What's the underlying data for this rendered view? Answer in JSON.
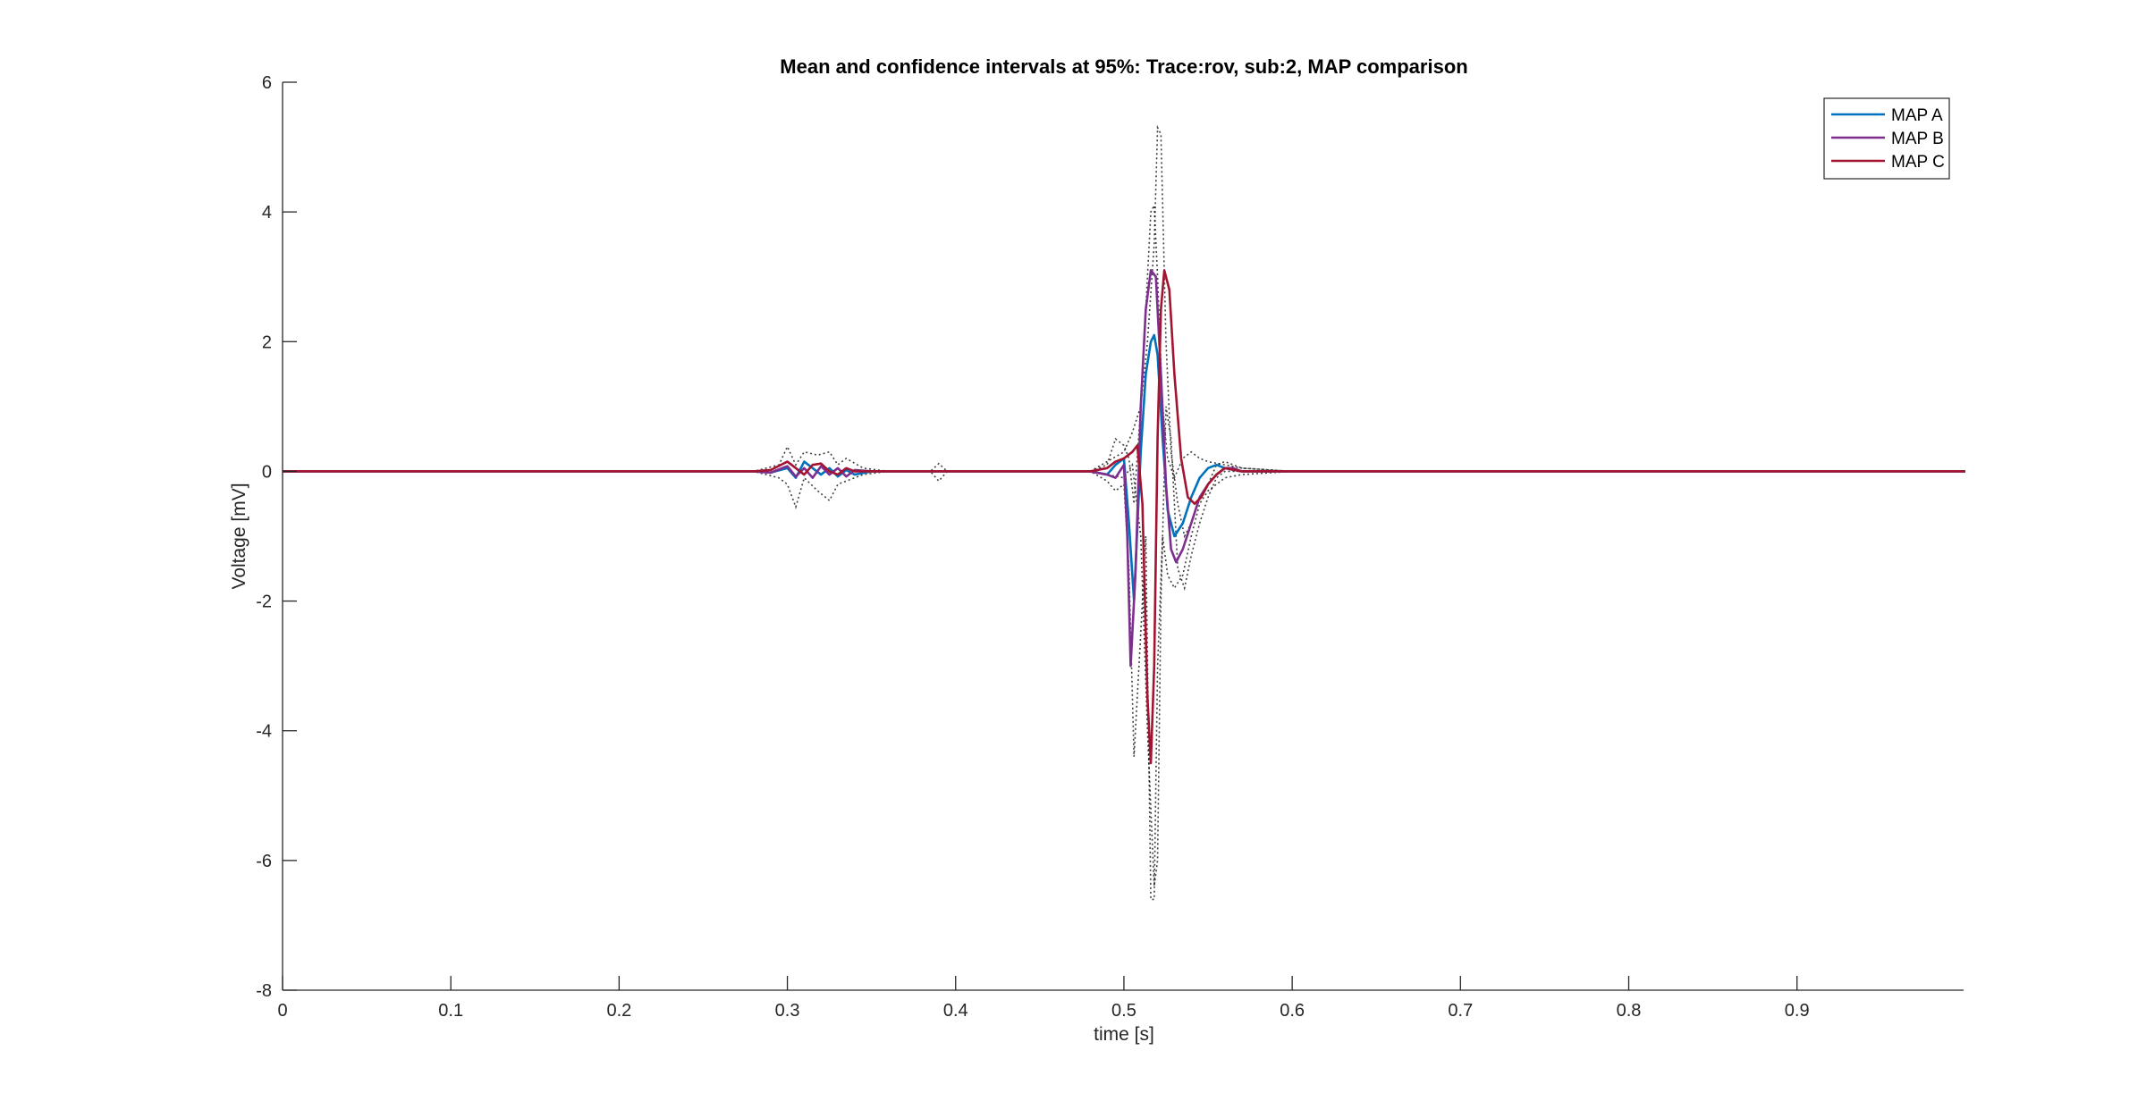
{
  "chart_data": {
    "type": "line",
    "title": "Mean and confidence intervals at 95%: Trace:rov, sub:2, MAP comparison",
    "xlabel": "time [s]",
    "ylabel": "Voltage [mV]",
    "xlim": [
      0,
      0.999
    ],
    "ylim": [
      -8,
      6
    ],
    "xticks": [
      0,
      0.1,
      0.2,
      0.3,
      0.4,
      0.5,
      0.6,
      0.7,
      0.8,
      0.9
    ],
    "xtick_labels": [
      "0",
      "0.1",
      "0.2",
      "0.3",
      "0.4",
      "0.5",
      "0.6",
      "0.7",
      "0.8",
      "0.9"
    ],
    "yticks": [
      -8,
      -6,
      -4,
      -2,
      0,
      2,
      4,
      6
    ],
    "ytick_labels": [
      "-8",
      "-6",
      "-4",
      "-2",
      "0",
      "2",
      "4",
      "6"
    ],
    "grid": false,
    "legend_position": "top-right",
    "series": [
      {
        "name": "MAP A",
        "color": "#0072BD",
        "style": "solid",
        "x": [
          0,
          0.28,
          0.29,
          0.3,
          0.305,
          0.31,
          0.315,
          0.32,
          0.325,
          0.33,
          0.335,
          0.34,
          0.35,
          0.36,
          0.4,
          0.48,
          0.49,
          0.495,
          0.5,
          0.503,
          0.506,
          0.51,
          0.513,
          0.516,
          0.518,
          0.52,
          0.523,
          0.526,
          0.53,
          0.535,
          0.54,
          0.545,
          0.55,
          0.555,
          0.56,
          0.57,
          0.6,
          1.0
        ],
        "y": [
          0,
          0,
          -0.02,
          0.05,
          -0.1,
          0.15,
          0.05,
          -0.05,
          0.05,
          -0.08,
          0.02,
          -0.05,
          0,
          0,
          0,
          0,
          -0.05,
          0.1,
          0.2,
          -0.8,
          -2.0,
          0.3,
          1.5,
          2.0,
          2.1,
          1.8,
          0.5,
          -0.6,
          -1.0,
          -0.8,
          -0.4,
          -0.1,
          0.05,
          0.1,
          0.05,
          0,
          0,
          0
        ]
      },
      {
        "name": "MAP B",
        "color": "#7E2F8E",
        "style": "solid",
        "x": [
          0,
          0.28,
          0.29,
          0.3,
          0.305,
          0.31,
          0.315,
          0.32,
          0.325,
          0.33,
          0.335,
          0.34,
          0.35,
          0.36,
          0.4,
          0.48,
          0.49,
          0.495,
          0.5,
          0.502,
          0.504,
          0.507,
          0.51,
          0.513,
          0.516,
          0.519,
          0.522,
          0.525,
          0.528,
          0.531,
          0.535,
          0.54,
          0.545,
          0.55,
          0.555,
          0.56,
          0.565,
          0.57,
          0.6,
          1.0
        ],
        "y": [
          0,
          0,
          -0.02,
          0.08,
          -0.08,
          0.05,
          -0.1,
          0.08,
          -0.05,
          0.05,
          -0.08,
          0.02,
          0,
          0,
          0,
          0,
          -0.05,
          -0.1,
          0.1,
          -1.0,
          -3.0,
          -1.5,
          1.0,
          2.5,
          3.1,
          3.0,
          1.5,
          -0.2,
          -1.2,
          -1.4,
          -1.2,
          -0.8,
          -0.4,
          -0.2,
          -0.05,
          0.05,
          0.05,
          0,
          0,
          0
        ]
      },
      {
        "name": "MAP C",
        "color": "#A2142F",
        "style": "solid",
        "x": [
          0,
          0.28,
          0.29,
          0.3,
          0.305,
          0.31,
          0.315,
          0.32,
          0.325,
          0.33,
          0.335,
          0.34,
          0.35,
          0.36,
          0.4,
          0.48,
          0.49,
          0.495,
          0.5,
          0.505,
          0.508,
          0.511,
          0.514,
          0.516,
          0.518,
          0.52,
          0.522,
          0.524,
          0.527,
          0.53,
          0.534,
          0.538,
          0.542,
          0.546,
          0.55,
          0.555,
          0.56,
          0.57,
          0.6,
          1.0
        ],
        "y": [
          0,
          0,
          0.02,
          0.15,
          0.05,
          -0.05,
          0.1,
          0.12,
          0.0,
          -0.05,
          0.05,
          0.0,
          0,
          0,
          0,
          0,
          0.05,
          0.15,
          0.2,
          0.3,
          0.4,
          -0.5,
          -3.5,
          -4.5,
          -3.0,
          0.5,
          2.5,
          3.1,
          2.8,
          1.5,
          0.2,
          -0.4,
          -0.5,
          -0.4,
          -0.2,
          -0.05,
          0.05,
          0,
          0,
          0
        ]
      }
    ],
    "confidence_intervals": [
      {
        "color": "#000000",
        "style": "dotted",
        "x": [
          0,
          0.28,
          0.295,
          0.3,
          0.305,
          0.31,
          0.318,
          0.325,
          0.33,
          0.335,
          0.345,
          0.36,
          0.385,
          0.39,
          0.395,
          0.48,
          0.49,
          0.495,
          0.5,
          0.503,
          0.506,
          0.51,
          0.513,
          0.516,
          0.518,
          0.52,
          0.523,
          0.526,
          0.53,
          0.535,
          0.54,
          0.545,
          0.55,
          0.56,
          0.57,
          0.6,
          1.0
        ],
        "y": [
          0,
          0,
          0.1,
          0.38,
          0.1,
          0.3,
          0.25,
          0.3,
          0.1,
          0.2,
          0.05,
          0,
          0,
          0.12,
          0,
          0,
          0.1,
          0.5,
          0.4,
          0.2,
          -0.5,
          1.0,
          2.5,
          4.0,
          4.1,
          3.0,
          1.0,
          0.2,
          -0.1,
          0.2,
          0.3,
          0.2,
          0.15,
          0.1,
          0.05,
          0,
          0
        ]
      },
      {
        "color": "#000000",
        "style": "dotted",
        "x": [
          0,
          0.28,
          0.295,
          0.3,
          0.305,
          0.31,
          0.318,
          0.325,
          0.33,
          0.335,
          0.345,
          0.36,
          0.385,
          0.39,
          0.395,
          0.48,
          0.49,
          0.495,
          0.5,
          0.503,
          0.506,
          0.51,
          0.513,
          0.516,
          0.518,
          0.52,
          0.523,
          0.526,
          0.53,
          0.535,
          0.54,
          0.545,
          0.55,
          0.56,
          0.57,
          0.6,
          1.0
        ],
        "y": [
          0,
          0,
          -0.1,
          -0.2,
          -0.55,
          -0.1,
          -0.3,
          -0.45,
          -0.2,
          -0.15,
          -0.05,
          0,
          0,
          -0.15,
          0,
          0,
          -0.15,
          -0.3,
          -0.2,
          -1.5,
          -4.4,
          -2.5,
          -1.0,
          -6.6,
          -6.6,
          -3.0,
          -1.0,
          -1.6,
          -1.8,
          -1.6,
          -1.0,
          -0.5,
          -0.3,
          -0.1,
          -0.05,
          0,
          0
        ]
      },
      {
        "color": "#000000",
        "style": "dotted",
        "x": [
          0.48,
          0.5,
          0.505,
          0.51,
          0.514,
          0.518,
          0.52,
          0.522,
          0.525,
          0.528,
          0.532,
          0.536,
          0.54,
          0.545,
          0.55,
          0.555,
          0.56,
          0.57,
          0.6
        ],
        "y": [
          0,
          0.3,
          0.6,
          1.0,
          2.0,
          3.5,
          5.3,
          5.2,
          2.0,
          0.3,
          -0.5,
          -1.0,
          -0.8,
          -0.4,
          -0.2,
          0.1,
          0.15,
          0.05,
          0
        ]
      },
      {
        "color": "#000000",
        "style": "dotted",
        "x": [
          0.48,
          0.5,
          0.505,
          0.51,
          0.514,
          0.518,
          0.52,
          0.522,
          0.525,
          0.528,
          0.532,
          0.536,
          0.54,
          0.545,
          0.55,
          0.555,
          0.56,
          0.57,
          0.6
        ],
        "y": [
          0,
          -0.1,
          0.1,
          -1.0,
          -4.0,
          -6.4,
          -6.0,
          -2.0,
          1.0,
          0.5,
          -1.5,
          -1.8,
          -1.3,
          -0.8,
          -0.4,
          -0.1,
          0,
          0,
          0
        ]
      }
    ]
  }
}
